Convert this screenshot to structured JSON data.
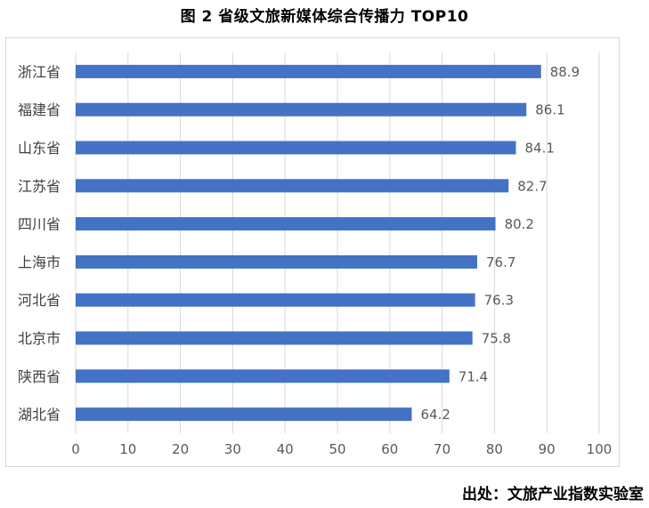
{
  "title": "图 2  省级文旅新媒体综合传播力 TOP10",
  "source": "出处：文旅产业指数实验室",
  "colors": {
    "bar": "#4472C4",
    "grid": "#d9d9d9",
    "text": "#595959"
  },
  "chart_data": {
    "type": "bar",
    "orientation": "horizontal",
    "title": "图 2  省级文旅新媒体综合传播力 TOP10",
    "categories": [
      "浙江省",
      "福建省",
      "山东省",
      "江苏省",
      "四川省",
      "上海市",
      "河北省",
      "北京市",
      "陕西省",
      "湖北省"
    ],
    "values": [
      88.9,
      86.1,
      84.1,
      82.7,
      80.2,
      76.7,
      76.3,
      75.8,
      71.4,
      64.2
    ],
    "xlim": [
      0,
      100
    ],
    "xticks": [
      0,
      10,
      20,
      30,
      40,
      50,
      60,
      70,
      80,
      90,
      100
    ],
    "grid": true,
    "data_labels": true,
    "legend": "none"
  }
}
